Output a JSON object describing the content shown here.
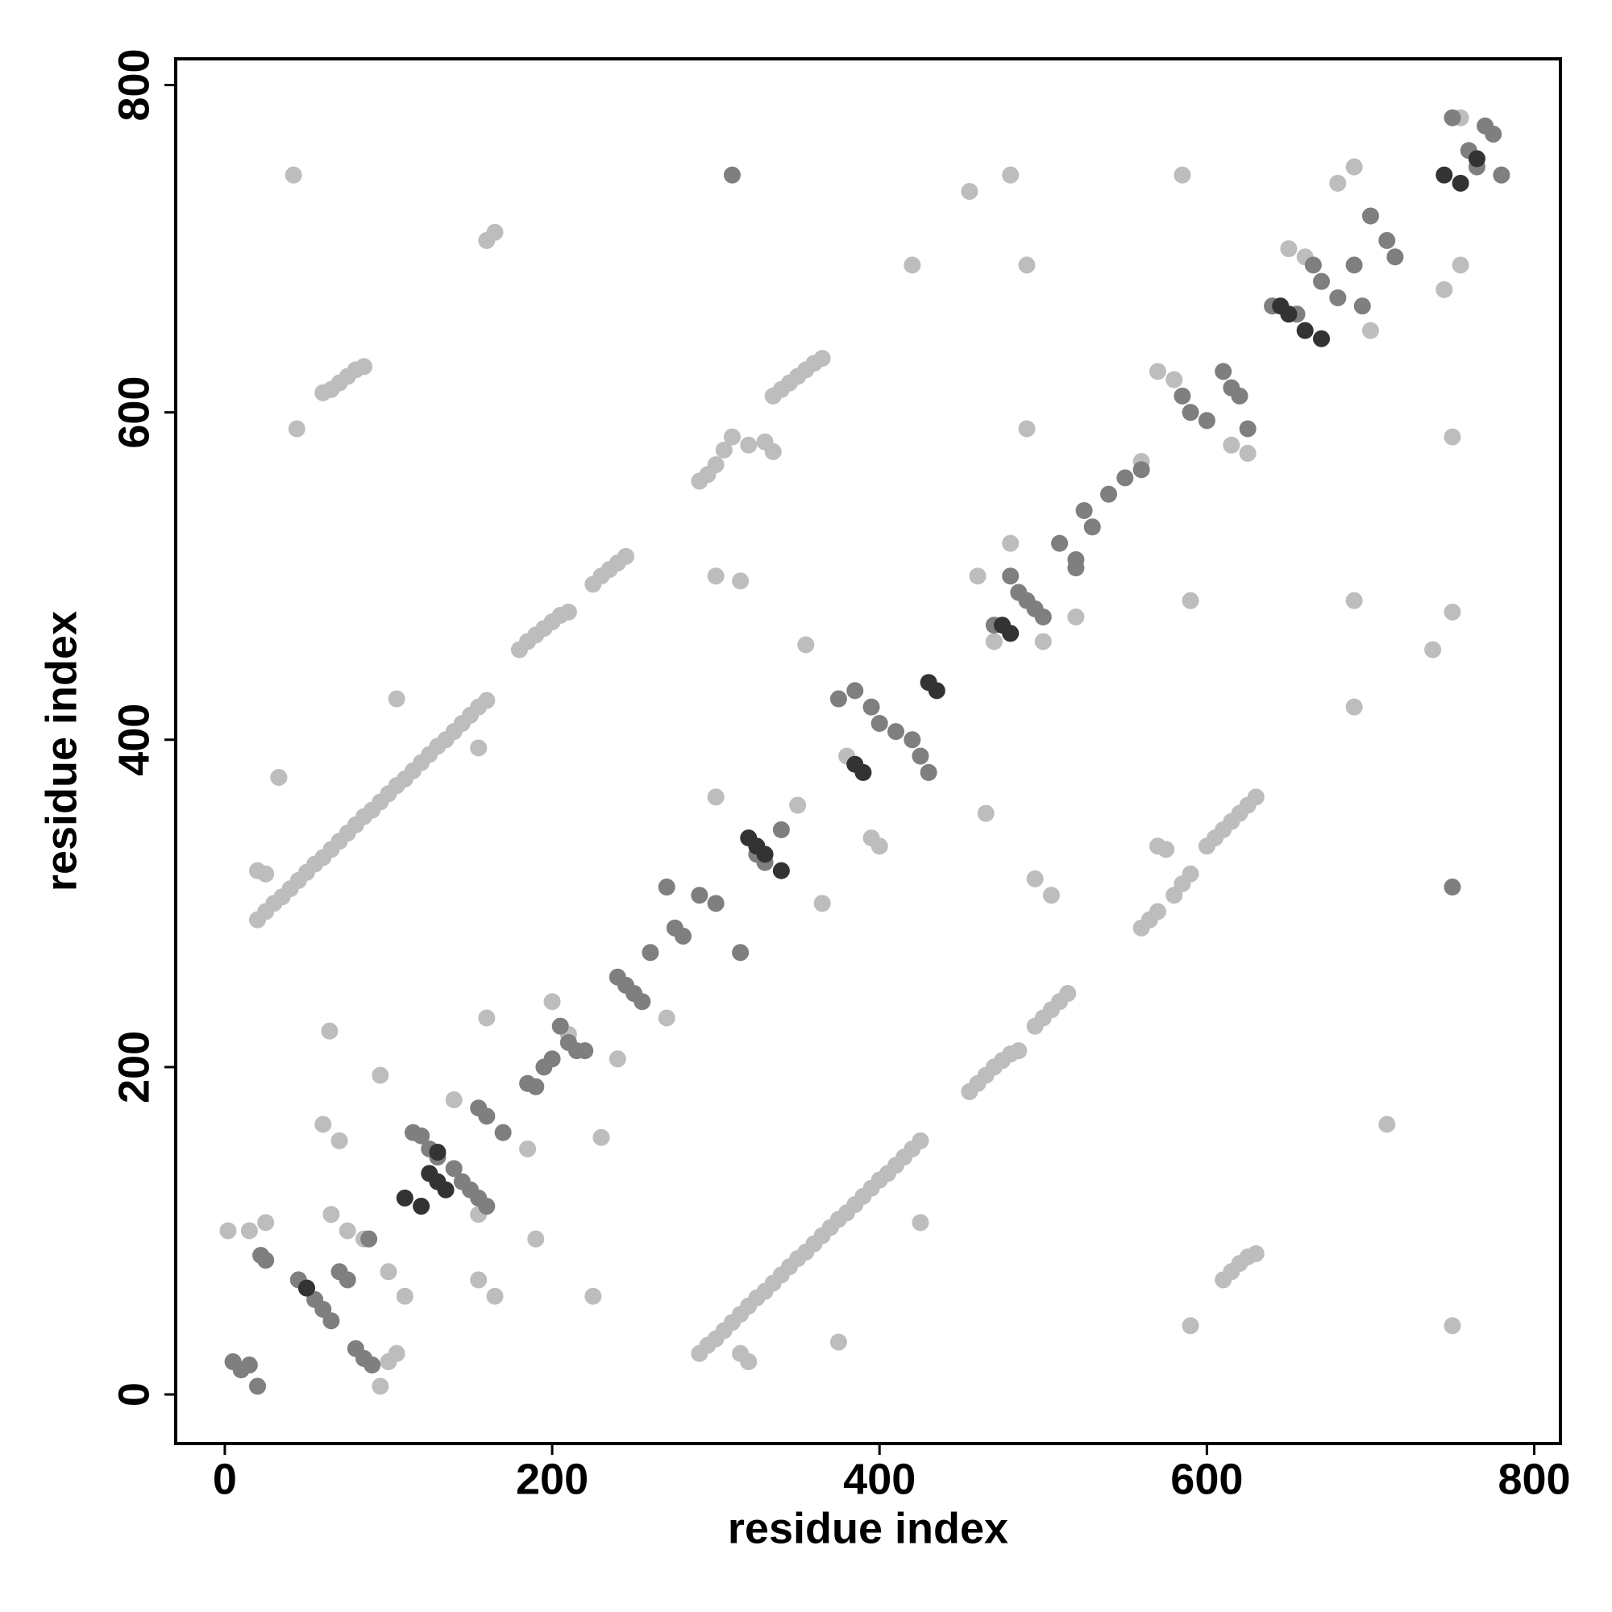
{
  "chart_data": {
    "type": "scatter",
    "x_label": "residue index",
    "y_label": "residue index",
    "xlim": [
      -30,
      816
    ],
    "ylim": [
      -30,
      816
    ],
    "xticks": [
      0,
      200,
      400,
      600,
      800
    ],
    "yticks": [
      0,
      200,
      400,
      600,
      800
    ],
    "series": [
      {
        "color": "#bdbdbd",
        "x": [
          20,
          25,
          30,
          35,
          40,
          45,
          50,
          55,
          60,
          65,
          70,
          75,
          80,
          85,
          90,
          95,
          100,
          105,
          110,
          115,
          120,
          125,
          130,
          135,
          140,
          145,
          150,
          155,
          160,
          20,
          25,
          33,
          180,
          185,
          190,
          195,
          200,
          205,
          210,
          225,
          230,
          235,
          240,
          245,
          290,
          295,
          300,
          305,
          310,
          320,
          335,
          340,
          345,
          350,
          355,
          360,
          365,
          330,
          335,
          60,
          65,
          70,
          75,
          80,
          85,
          160,
          165,
          290,
          295,
          300,
          305,
          310,
          315,
          320,
          325,
          330,
          335,
          340,
          345,
          350,
          355,
          360,
          365,
          370,
          375,
          380,
          385,
          390,
          395,
          400,
          405,
          410,
          415,
          420,
          425,
          320,
          315,
          455,
          460,
          465,
          470,
          475,
          480,
          485,
          495,
          500,
          505,
          510,
          515,
          560,
          565,
          570,
          580,
          585,
          590,
          600,
          605,
          610,
          615,
          620,
          625,
          630,
          570,
          575,
          610,
          615,
          620,
          625,
          630,
          590,
          750,
          375,
          225,
          230,
          160,
          64,
          95,
          190,
          105,
          155,
          300,
          315,
          300,
          365,
          495,
          505,
          465,
          42,
          480,
          585,
          455,
          490,
          420,
          44,
          490,
          750,
          690,
          590,
          750,
          738,
          690,
          355,
          425,
          710,
          2,
          15,
          25,
          60,
          70,
          65,
          75,
          85,
          100,
          110,
          100,
          105,
          95,
          140,
          155,
          165,
          155,
          185,
          200,
          210,
          240,
          270,
          350,
          380,
          395,
          400,
          470,
          460,
          480,
          500,
          520,
          560,
          570,
          580,
          615,
          625,
          650,
          660,
          690,
          680,
          700,
          745,
          755,
          780,
          755
        ],
        "values": [
          290,
          295,
          300,
          304,
          309,
          314,
          319,
          324,
          328,
          333,
          338,
          343,
          348,
          353,
          357,
          362,
          367,
          372,
          376,
          381,
          386,
          391,
          396,
          400,
          405,
          410,
          415,
          420,
          424,
          320,
          318,
          377,
          455,
          460,
          464,
          468,
          472,
          476,
          478,
          495,
          500,
          504,
          508,
          512,
          558,
          562,
          568,
          577,
          585,
          580,
          610,
          614,
          618,
          622,
          626,
          630,
          633,
          582,
          576,
          612,
          614,
          618,
          622,
          626,
          628,
          705,
          710,
          25,
          30,
          34,
          39,
          44,
          49,
          54,
          59,
          63,
          68,
          73,
          78,
          83,
          87,
          92,
          97,
          102,
          107,
          111,
          116,
          121,
          126,
          131,
          135,
          140,
          145,
          150,
          155,
          20,
          25,
          185,
          190,
          195,
          200,
          204,
          208,
          210,
          225,
          230,
          235,
          240,
          245,
          285,
          290,
          295,
          305,
          312,
          318,
          335,
          340,
          345,
          350,
          355,
          360,
          365,
          335,
          333,
          70,
          75,
          80,
          84,
          86,
          42,
          42,
          32,
          60,
          157,
          230,
          222,
          195,
          95,
          425,
          395,
          500,
          497,
          365,
          300,
          315,
          305,
          355,
          745,
          745,
          745,
          735,
          690,
          690,
          590,
          590,
          585,
          485,
          485,
          478,
          455,
          420,
          458,
          105,
          165,
          100,
          100,
          105,
          165,
          155,
          110,
          100,
          95,
          75,
          60,
          20,
          25,
          5,
          180,
          110,
          60,
          70,
          150,
          240,
          220,
          205,
          230,
          360,
          390,
          340,
          335,
          460,
          500,
          520,
          460,
          475,
          570,
          625,
          620,
          580,
          575,
          700,
          695,
          750,
          740,
          650,
          675,
          690,
          745,
          780
        ]
      },
      {
        "color": "#7f7f7f",
        "x": [
          5,
          10,
          15,
          20,
          22,
          25,
          45,
          50,
          55,
          60,
          65,
          70,
          75,
          80,
          85,
          90,
          88,
          115,
          120,
          125,
          130,
          140,
          145,
          150,
          155,
          160,
          155,
          160,
          170,
          185,
          190,
          195,
          200,
          205,
          210,
          215,
          220,
          240,
          245,
          250,
          255,
          260,
          270,
          275,
          280,
          290,
          300,
          315,
          325,
          330,
          340,
          375,
          385,
          395,
          400,
          410,
          420,
          425,
          430,
          470,
          480,
          485,
          490,
          495,
          500,
          510,
          520,
          525,
          530,
          540,
          550,
          560,
          585,
          590,
          600,
          610,
          615,
          620,
          625,
          640,
          655,
          665,
          670,
          680,
          690,
          695,
          700,
          710,
          715,
          760,
          765,
          770,
          775,
          780,
          750,
          310,
          750,
          520
        ],
        "values": [
          20,
          15,
          18,
          5,
          85,
          82,
          70,
          65,
          58,
          52,
          45,
          75,
          70,
          28,
          22,
          18,
          95,
          160,
          158,
          150,
          145,
          138,
          130,
          125,
          120,
          115,
          175,
          170,
          160,
          190,
          188,
          200,
          205,
          225,
          215,
          210,
          210,
          255,
          250,
          245,
          240,
          270,
          310,
          285,
          280,
          305,
          300,
          270,
          330,
          325,
          345,
          425,
          430,
          420,
          410,
          405,
          400,
          390,
          380,
          470,
          500,
          490,
          485,
          480,
          475,
          520,
          510,
          540,
          530,
          550,
          560,
          565,
          610,
          600,
          595,
          625,
          615,
          610,
          590,
          665,
          660,
          690,
          680,
          670,
          690,
          665,
          720,
          705,
          695,
          760,
          750,
          775,
          770,
          745,
          780,
          745,
          310,
          505
        ]
      },
      {
        "color": "#333333",
        "x": [
          110,
          120,
          125,
          130,
          135,
          320,
          325,
          330,
          340,
          385,
          390,
          430,
          435,
          475,
          480,
          645,
          650,
          660,
          670,
          745,
          755,
          765,
          50,
          130
        ],
        "values": [
          120,
          115,
          135,
          130,
          125,
          340,
          335,
          330,
          320,
          385,
          380,
          435,
          430,
          470,
          465,
          665,
          660,
          650,
          645,
          745,
          740,
          755,
          65,
          148
        ]
      }
    ]
  }
}
